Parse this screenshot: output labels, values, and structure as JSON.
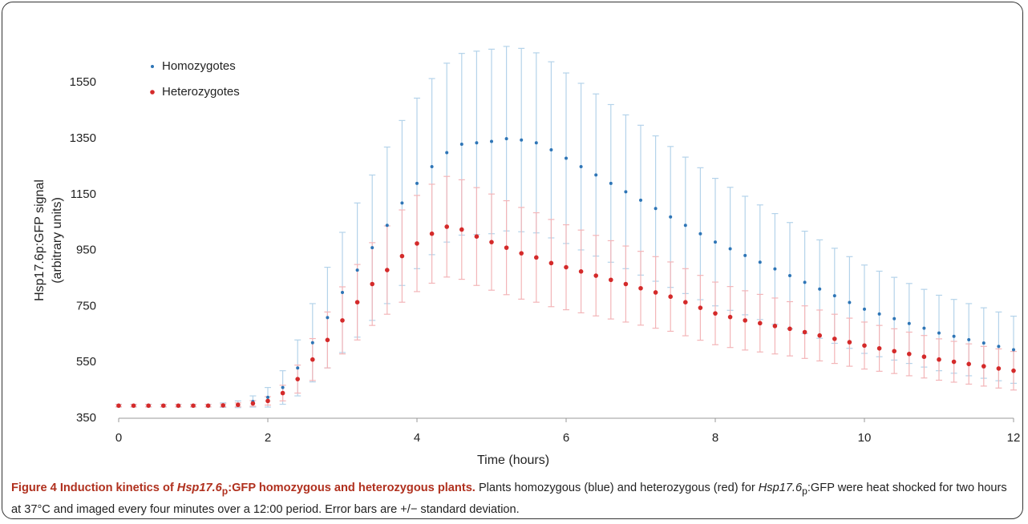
{
  "chart_data": {
    "type": "scatter",
    "x_label": "Time (hours)",
    "y_label": [
      "Hsp17.6p:GFP signal",
      "(arbitrary units)"
    ],
    "x": [
      0,
      0.2,
      0.4,
      0.6,
      0.8,
      1,
      1.2,
      1.4,
      1.6,
      1.8,
      2,
      2.2,
      2.4,
      2.6,
      2.8,
      3,
      3.2,
      3.4,
      3.6,
      3.8,
      4,
      4.2,
      4.4,
      4.6,
      4.8,
      5,
      5.2,
      5.4,
      5.6,
      5.8,
      6,
      6.2,
      6.4,
      6.6,
      6.8,
      7,
      7.2,
      7.4,
      7.6,
      7.8,
      8,
      8.2,
      8.4,
      8.6,
      8.8,
      9,
      9.2,
      9.4,
      9.6,
      9.8,
      10,
      10.2,
      10.4,
      10.6,
      10.8,
      11,
      11.2,
      11.4,
      11.6,
      11.8,
      12
    ],
    "series": [
      {
        "name": "Homozygotes",
        "color": "#2e75b6",
        "error_color": "#b4d3ea",
        "values": [
          395,
          395,
          395,
          395,
          395,
          395,
          395,
          397,
          400,
          410,
          425,
          460,
          530,
          620,
          710,
          800,
          880,
          960,
          1040,
          1120,
          1190,
          1250,
          1300,
          1330,
          1335,
          1340,
          1350,
          1345,
          1335,
          1310,
          1280,
          1250,
          1220,
          1190,
          1160,
          1130,
          1100,
          1070,
          1040,
          1010,
          980,
          956,
          932,
          908,
          884,
          860,
          836,
          812,
          788,
          764,
          740,
          723,
          706,
          689,
          672,
          655,
          643,
          631,
          619,
          607,
          595
        ],
        "errors": [
          5,
          5,
          5,
          5,
          5,
          5,
          5,
          8,
          12,
          20,
          35,
          60,
          100,
          140,
          180,
          215,
          240,
          260,
          280,
          295,
          305,
          315,
          320,
          325,
          328,
          330,
          330,
          328,
          322,
          315,
          305,
          298,
          290,
          282,
          275,
          268,
          260,
          252,
          244,
          236,
          228,
          220,
          212,
          205,
          198,
          190,
          183,
          176,
          170,
          164,
          158,
          153,
          148,
          143,
          139,
          135,
          132,
          129,
          126,
          123,
          120
        ]
      },
      {
        "name": "Heterozygotes",
        "color": "#d42a2a",
        "error_color": "#f3b5b8",
        "values": [
          395,
          395,
          395,
          395,
          395,
          395,
          395,
          396,
          398,
          403,
          412,
          440,
          490,
          560,
          630,
          700,
          765,
          830,
          880,
          930,
          975,
          1010,
          1035,
          1025,
          1000,
          980,
          960,
          940,
          925,
          905,
          890,
          875,
          860,
          845,
          830,
          815,
          800,
          785,
          765,
          745,
          725,
          712,
          700,
          690,
          680,
          670,
          658,
          646,
          634,
          622,
          610,
          600,
          590,
          580,
          570,
          560,
          552,
          544,
          536,
          528,
          520
        ],
        "errors": [
          4,
          4,
          4,
          4,
          4,
          4,
          4,
          5,
          7,
          10,
          15,
          28,
          50,
          75,
          100,
          120,
          135,
          148,
          158,
          165,
          172,
          177,
          180,
          178,
          175,
          172,
          168,
          164,
          160,
          156,
          152,
          148,
          144,
          140,
          136,
          132,
          128,
          124,
          120,
          116,
          112,
          109,
          106,
          103,
          100,
          97,
          94,
          91,
          88,
          86,
          84,
          82,
          80,
          78,
          76,
          74,
          73,
          72,
          71,
          70,
          69
        ]
      }
    ],
    "xlim": [
      0,
      12
    ],
    "xticks": [
      0,
      2,
      4,
      6,
      8,
      10,
      12
    ],
    "ylim": [
      350,
      1760
    ],
    "yticks": [
      350,
      550,
      750,
      950,
      1150,
      1350,
      1550
    ],
    "legend": "top-left"
  },
  "caption": {
    "label": "Figure 4",
    "title": [
      "Induction kinetics of ",
      "Hsp17.6",
      "p",
      ":GFP homozygous and heterozygous plants."
    ],
    "text": [
      "Plants homozygous (blue) and heterozygous (red) for ",
      "Hsp17.6",
      "p",
      ":GFP were heat shocked for two hours at 37°C and imaged every four minutes over a 12:00 period. Error bars are +/− standard deviation."
    ]
  }
}
